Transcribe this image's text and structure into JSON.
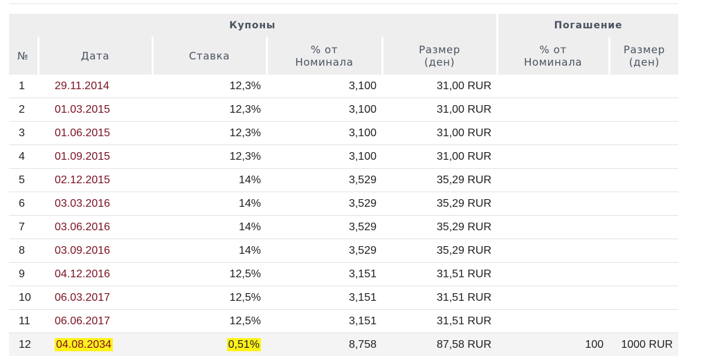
{
  "header": {
    "group_coupons": "Купоны",
    "group_redemption": "Погашение",
    "col_no": "№",
    "col_date": "Дата",
    "col_rate": "Ставка",
    "col_pct_nominal_line1": "% от",
    "col_pct_nominal_line2": "Номинала",
    "col_size_line1": "Размер",
    "col_size_line2": "(ден)",
    "col_red_pct_line1": "% от",
    "col_red_pct_line2": "Номинала",
    "col_red_size_line1": "Размер",
    "col_red_size_line2": "(ден)"
  },
  "highlight_color": "#fff21a",
  "date_color": "#7a1020",
  "rows": [
    {
      "no": "1",
      "date": "29.11.2014",
      "rate": "12,3%",
      "pct": "3,100",
      "size": "31,00 RUR",
      "red_pct": "",
      "red_size": ""
    },
    {
      "no": "2",
      "date": "01.03.2015",
      "rate": "12,3%",
      "pct": "3,100",
      "size": "31,00 RUR",
      "red_pct": "",
      "red_size": ""
    },
    {
      "no": "3",
      "date": "01.06.2015",
      "rate": "12,3%",
      "pct": "3,100",
      "size": "31,00 RUR",
      "red_pct": "",
      "red_size": ""
    },
    {
      "no": "4",
      "date": "01.09.2015",
      "rate": "12,3%",
      "pct": "3,100",
      "size": "31,00 RUR",
      "red_pct": "",
      "red_size": ""
    },
    {
      "no": "5",
      "date": "02.12.2015",
      "rate": "14%",
      "pct": "3,529",
      "size": "35,29 RUR",
      "red_pct": "",
      "red_size": ""
    },
    {
      "no": "6",
      "date": "03.03.2016",
      "rate": "14%",
      "pct": "3,529",
      "size": "35,29 RUR",
      "red_pct": "",
      "red_size": ""
    },
    {
      "no": "7",
      "date": "03.06.2016",
      "rate": "14%",
      "pct": "3,529",
      "size": "35,29 RUR",
      "red_pct": "",
      "red_size": ""
    },
    {
      "no": "8",
      "date": "03.09.2016",
      "rate": "14%",
      "pct": "3,529",
      "size": "35,29 RUR",
      "red_pct": "",
      "red_size": ""
    },
    {
      "no": "9",
      "date": "04.12.2016",
      "rate": "12,5%",
      "pct": "3,151",
      "size": "31,51 RUR",
      "red_pct": "",
      "red_size": ""
    },
    {
      "no": "10",
      "date": "06.03.2017",
      "rate": "12,5%",
      "pct": "3,151",
      "size": "31,51 RUR",
      "red_pct": "",
      "red_size": ""
    },
    {
      "no": "11",
      "date": "06.06.2017",
      "rate": "12,5%",
      "pct": "3,151",
      "size": "31,51 RUR",
      "red_pct": "",
      "red_size": ""
    },
    {
      "no": "12",
      "date": "04.08.2034",
      "rate": "0,51%",
      "pct": "8,758",
      "size": "87,58 RUR",
      "red_pct": "100",
      "red_size": "1000 RUR",
      "highlight": true
    }
  ]
}
